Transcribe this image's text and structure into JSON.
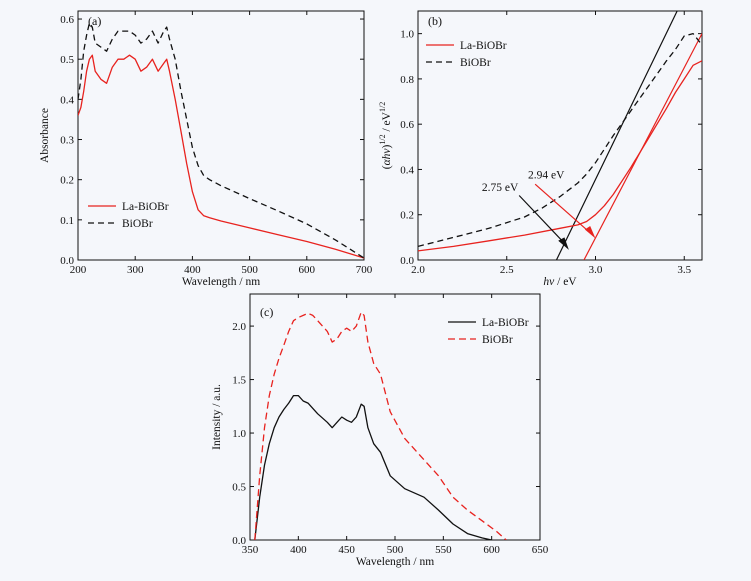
{
  "chart_data": [
    {
      "panel": "(a)",
      "type": "line",
      "xlabel": "Wavelength / nm",
      "ylabel": "Absorbance",
      "xlim": [
        200,
        700
      ],
      "ylim": [
        0,
        0.62
      ],
      "xticks": [
        200,
        300,
        400,
        500,
        600,
        700
      ],
      "yticks": [
        0.0,
        0.1,
        0.2,
        0.3,
        0.4,
        0.5,
        0.6
      ],
      "ytick_labels": [
        "0.0",
        "0.1",
        "0.2",
        "0.3",
        "0.4",
        "0.5",
        "0.6"
      ],
      "legend_position": "bottom-left",
      "series": [
        {
          "name": "La-BiOBr",
          "color": "#e8231f",
          "dash": "",
          "x": [
            200,
            205,
            210,
            215,
            220,
            225,
            230,
            240,
            250,
            260,
            270,
            280,
            290,
            300,
            310,
            320,
            330,
            340,
            350,
            355,
            360,
            370,
            380,
            390,
            400,
            410,
            420,
            430,
            450,
            500,
            550,
            600,
            650,
            700
          ],
          "y": [
            0.36,
            0.38,
            0.42,
            0.47,
            0.5,
            0.51,
            0.47,
            0.45,
            0.44,
            0.48,
            0.5,
            0.5,
            0.51,
            0.5,
            0.47,
            0.48,
            0.5,
            0.47,
            0.49,
            0.5,
            0.47,
            0.4,
            0.32,
            0.24,
            0.17,
            0.125,
            0.11,
            0.105,
            0.097,
            0.08,
            0.063,
            0.046,
            0.027,
            0.005
          ]
        },
        {
          "name": "BiOBr",
          "color": "#111111",
          "dash": "6,4",
          "x": [
            200,
            205,
            210,
            215,
            220,
            225,
            230,
            240,
            250,
            260,
            270,
            280,
            290,
            300,
            310,
            320,
            330,
            340,
            350,
            355,
            360,
            370,
            380,
            390,
            400,
            410,
            420,
            430,
            450,
            500,
            550,
            600,
            650,
            700
          ],
          "y": [
            0.4,
            0.45,
            0.52,
            0.56,
            0.59,
            0.58,
            0.54,
            0.53,
            0.52,
            0.55,
            0.57,
            0.57,
            0.57,
            0.56,
            0.54,
            0.55,
            0.57,
            0.54,
            0.57,
            0.58,
            0.55,
            0.5,
            0.42,
            0.35,
            0.28,
            0.235,
            0.21,
            0.2,
            0.185,
            0.153,
            0.122,
            0.09,
            0.05,
            0.005
          ]
        }
      ]
    },
    {
      "panel": "(b)",
      "type": "line",
      "xlabel_italic": "hv",
      "xlabel_rest": " / eV",
      "ylabel_parts": [
        "(",
        "αhv",
        ")",
        "1/2",
        " / eV",
        "1/2"
      ],
      "xlim": [
        2.0,
        3.6
      ],
      "ylim": [
        0,
        1.1
      ],
      "xticks": [
        2.0,
        2.5,
        3.0,
        3.5
      ],
      "xtick_labels": [
        "2.0",
        "2.5",
        "3.0",
        "3.5"
      ],
      "yticks": [
        0.0,
        0.2,
        0.4,
        0.6,
        0.8,
        1.0
      ],
      "ytick_labels": [
        "0.0",
        "0.2",
        "0.4",
        "0.6",
        "0.8",
        "1.0"
      ],
      "legend_position": "top-left",
      "series": [
        {
          "name": "La-BiOBr",
          "color": "#e8231f",
          "dash": "",
          "x": [
            2.0,
            2.2,
            2.4,
            2.6,
            2.8,
            2.9,
            2.95,
            3.0,
            3.05,
            3.1,
            3.2,
            3.3,
            3.4,
            3.45,
            3.5,
            3.55,
            3.6
          ],
          "y": [
            0.04,
            0.06,
            0.085,
            0.11,
            0.14,
            0.155,
            0.17,
            0.2,
            0.24,
            0.29,
            0.41,
            0.54,
            0.67,
            0.74,
            0.8,
            0.86,
            0.88
          ]
        },
        {
          "name": "BiOBr",
          "color": "#111111",
          "dash": "6,4",
          "x": [
            2.0,
            2.2,
            2.4,
            2.6,
            2.7,
            2.8,
            2.9,
            2.95,
            3.0,
            3.1,
            3.2,
            3.3,
            3.4,
            3.45,
            3.5,
            3.55,
            3.6
          ],
          "y": [
            0.06,
            0.1,
            0.14,
            0.19,
            0.23,
            0.28,
            0.34,
            0.38,
            0.43,
            0.55,
            0.66,
            0.77,
            0.88,
            0.93,
            0.99,
            1.0,
            0.95
          ]
        }
      ],
      "tangent_lines": [
        {
          "color": "#111111",
          "x": [
            2.78,
            3.46
          ],
          "y": [
            0,
            1.1
          ]
        },
        {
          "color": "#e8231f",
          "x": [
            2.935,
            3.6
          ],
          "y": [
            0,
            1.0
          ]
        }
      ],
      "annotations": [
        {
          "text": "2.75 eV",
          "color": "#111111",
          "value": 2.75
        },
        {
          "text": "2.94 eV",
          "color": "#e8231f",
          "value": 2.94
        }
      ]
    },
    {
      "panel": "(c)",
      "type": "line",
      "xlabel": "Wavelength / nm",
      "ylabel": "Intensity / a.u.",
      "xlim": [
        350,
        650
      ],
      "ylim": [
        0,
        2.3
      ],
      "xticks": [
        350,
        400,
        450,
        500,
        550,
        600,
        650
      ],
      "yticks": [
        0.0,
        0.5,
        1.0,
        1.5,
        2.0
      ],
      "ytick_labels": [
        "0.0",
        "0.5",
        "1.0",
        "1.5",
        "2.0"
      ],
      "legend_position": "top-right",
      "series": [
        {
          "name": "La-BiOBr",
          "color": "#111111",
          "dash": "",
          "x": [
            355,
            360,
            365,
            370,
            375,
            380,
            385,
            390,
            395,
            400,
            405,
            410,
            420,
            430,
            435,
            440,
            445,
            450,
            455,
            460,
            465,
            468,
            472,
            478,
            485,
            495,
            510,
            530,
            545,
            560,
            575,
            590,
            600
          ],
          "y": [
            0,
            0.4,
            0.7,
            0.9,
            1.05,
            1.15,
            1.22,
            1.28,
            1.35,
            1.35,
            1.3,
            1.28,
            1.18,
            1.1,
            1.05,
            1.1,
            1.15,
            1.12,
            1.1,
            1.15,
            1.27,
            1.25,
            1.05,
            0.9,
            0.82,
            0.6,
            0.48,
            0.4,
            0.28,
            0.15,
            0.06,
            0.02,
            0
          ]
        },
        {
          "name": "BiOBr",
          "color": "#e8231f",
          "dash": "7,4",
          "x": [
            355,
            360,
            365,
            370,
            375,
            380,
            385,
            390,
            395,
            400,
            405,
            410,
            415,
            420,
            430,
            435,
            440,
            445,
            450,
            455,
            460,
            465,
            468,
            472,
            478,
            485,
            495,
            510,
            530,
            545,
            560,
            575,
            590,
            605,
            615
          ],
          "y": [
            0,
            0.6,
            1.05,
            1.35,
            1.55,
            1.7,
            1.82,
            1.95,
            2.05,
            2.08,
            2.1,
            2.12,
            2.1,
            2.05,
            1.95,
            1.85,
            1.88,
            1.95,
            1.98,
            1.95,
            2.0,
            2.13,
            2.1,
            1.85,
            1.65,
            1.55,
            1.2,
            0.95,
            0.75,
            0.6,
            0.4,
            0.28,
            0.18,
            0.08,
            0
          ]
        }
      ]
    }
  ]
}
